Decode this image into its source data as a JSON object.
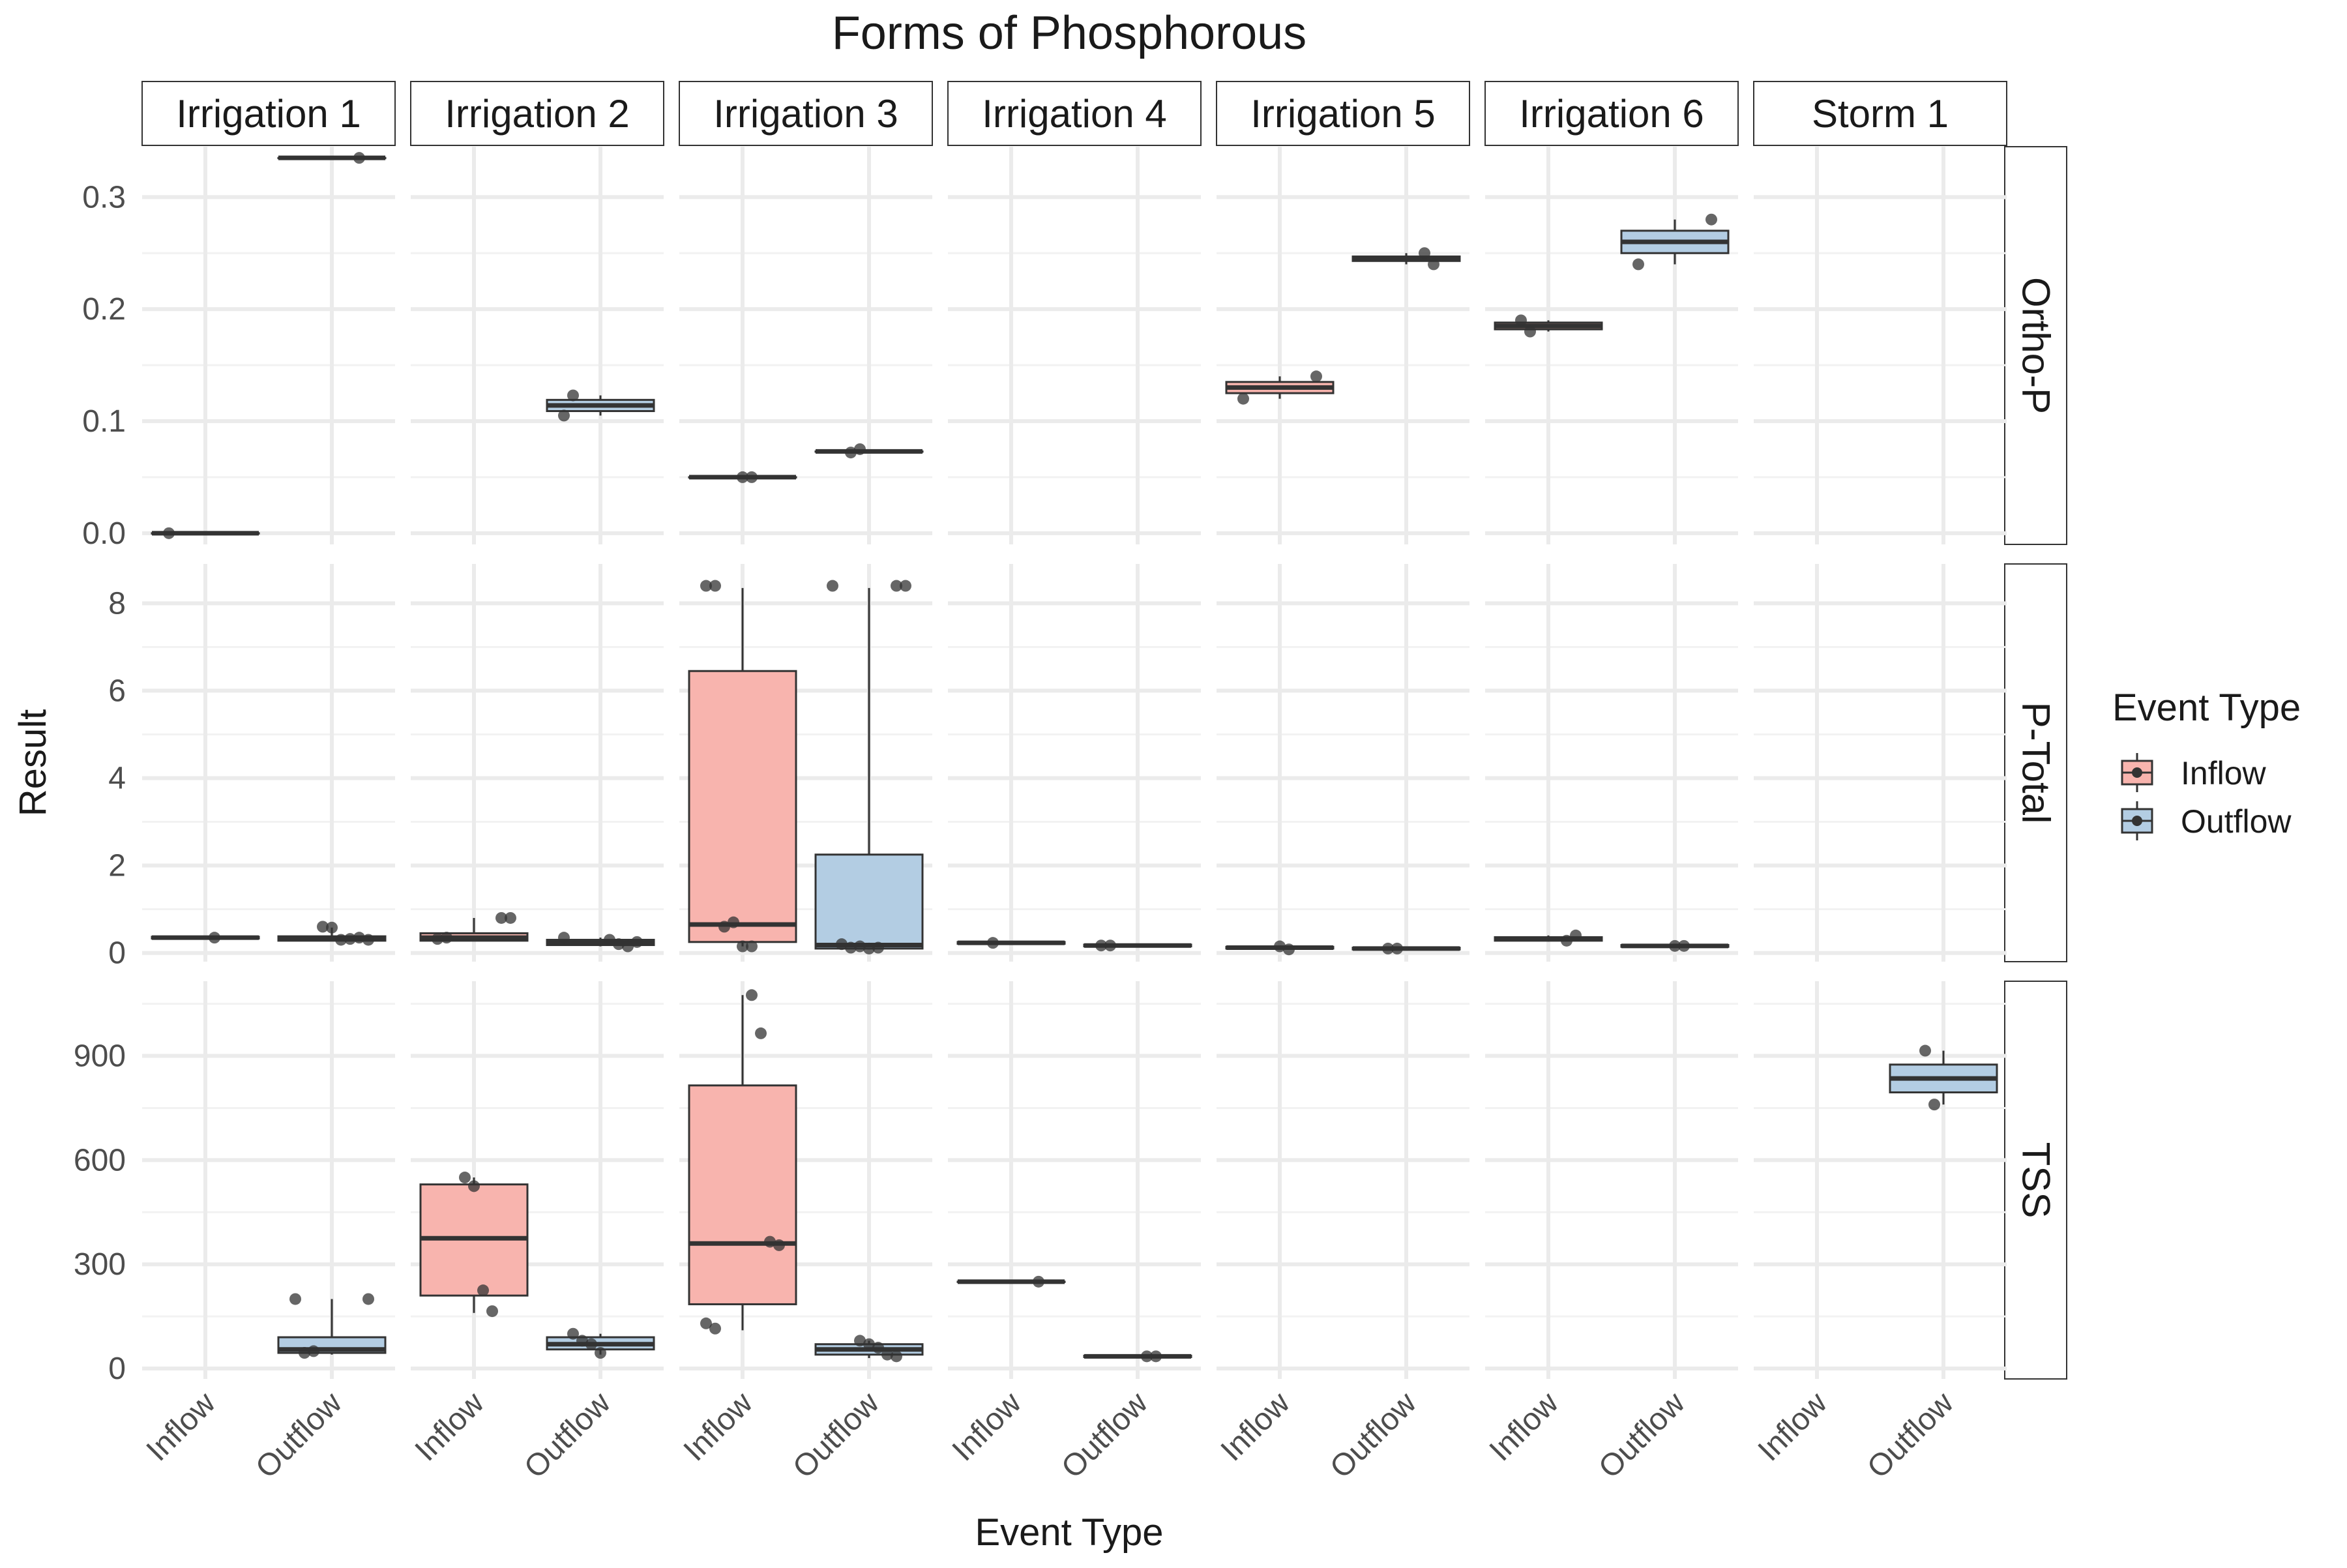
{
  "chart_data": {
    "type": "box",
    "title": "Forms of Phosphorous",
    "xlabel": "Event Type",
    "ylabel": "Result",
    "legend": {
      "title": "Event Type",
      "placement": "right",
      "items": [
        {
          "label": "Inflow",
          "color": "#F8B4AE"
        },
        {
          "label": "Outflow",
          "color": "#B3CDE3"
        }
      ]
    },
    "grid": true,
    "columns": [
      "Irrigation 1",
      "Irrigation 2",
      "Irrigation 3",
      "Irrigation 4",
      "Irrigation 5",
      "Irrigation 6",
      "Storm 1"
    ],
    "categories": [
      "Inflow",
      "Outflow"
    ],
    "rows": [
      {
        "name": "Ortho-P",
        "ylim": [
          -0.01,
          0.345
        ],
        "yticks": [
          0,
          0.1,
          0.2,
          0.3
        ],
        "yticklabels": [
          "0.0",
          "0.1",
          "0.2",
          "0.3"
        ],
        "cells": [
          {
            "Inflow": {
              "q1": 0,
              "median": 0,
              "q3": 0,
              "min": 0,
              "max": 0,
              "points": [
                0
              ]
            },
            "Outflow": {
              "q1": 0.335,
              "median": 0.335,
              "q3": 0.335,
              "min": 0.335,
              "max": 0.335,
              "points": [
                0.335
              ]
            }
          },
          {
            "Inflow": null,
            "Outflow": {
              "q1": 0.109,
              "median": 0.114,
              "q3": 0.119,
              "min": 0.105,
              "max": 0.123,
              "points": [
                0.105,
                0.123
              ]
            }
          },
          {
            "Inflow": {
              "q1": 0.05,
              "median": 0.05,
              "q3": 0.05,
              "min": 0.05,
              "max": 0.05,
              "points": [
                0.05,
                0.05
              ]
            },
            "Outflow": {
              "q1": 0.073,
              "median": 0.073,
              "q3": 0.073,
              "min": 0.072,
              "max": 0.074,
              "points": [
                0.072,
                0.075
              ]
            }
          },
          {
            "Inflow": null,
            "Outflow": null
          },
          {
            "Inflow": {
              "q1": 0.125,
              "median": 0.13,
              "q3": 0.135,
              "min": 0.12,
              "max": 0.14,
              "points": [
                0.14,
                0.12
              ]
            },
            "Outflow": {
              "q1": 0.243,
              "median": 0.245,
              "q3": 0.247,
              "min": 0.24,
              "max": 0.25,
              "points": [
                0.25,
                0.24
              ]
            }
          },
          {
            "Inflow": {
              "q1": 0.182,
              "median": 0.185,
              "q3": 0.188,
              "min": 0.18,
              "max": 0.19,
              "points": [
                0.19,
                0.18
              ]
            },
            "Outflow": {
              "q1": 0.25,
              "median": 0.26,
              "q3": 0.27,
              "min": 0.24,
              "max": 0.28,
              "points": [
                0.28,
                0.24
              ]
            }
          },
          {
            "Inflow": null,
            "Outflow": null
          }
        ]
      },
      {
        "name": "P-Total",
        "ylim": [
          -0.2,
          8.9
        ],
        "yticks": [
          0,
          2,
          4,
          6,
          8
        ],
        "yticklabels": [
          "0",
          "2",
          "4",
          "6",
          "8"
        ],
        "cells": [
          {
            "Inflow": {
              "q1": 0.33,
              "median": 0.35,
              "q3": 0.37,
              "min": 0.33,
              "max": 0.37,
              "points": [
                0.35
              ]
            },
            "Outflow": {
              "q1": 0.28,
              "median": 0.32,
              "q3": 0.38,
              "min": 0.27,
              "max": 0.58,
              "points": [
                0.6,
                0.58,
                0.3,
                0.32,
                0.35,
                0.3
              ]
            }
          },
          {
            "Inflow": {
              "q1": 0.28,
              "median": 0.35,
              "q3": 0.45,
              "min": 0.28,
              "max": 0.8,
              "points": [
                0.8,
                0.8,
                0.32,
                0.35
              ]
            },
            "Outflow": {
              "q1": 0.18,
              "median": 0.23,
              "q3": 0.3,
              "min": 0.15,
              "max": 0.35,
              "points": [
                0.3,
                0.2,
                0.15,
                0.25,
                0.35
              ]
            }
          },
          {
            "Inflow": {
              "q1": 0.25,
              "median": 0.65,
              "q3": 6.45,
              "min": 0.15,
              "max": 8.35,
              "points": [
                8.4,
                8.4,
                0.6,
                0.7,
                0.15,
                0.15
              ]
            },
            "Outflow": {
              "q1": 0.1,
              "median": 0.18,
              "q3": 2.25,
              "min": 0.08,
              "max": 8.35,
              "points": [
                8.4,
                8.4,
                8.4,
                0.2,
                0.12,
                0.15,
                0.1,
                0.12
              ]
            }
          },
          {
            "Inflow": {
              "q1": 0.21,
              "median": 0.23,
              "q3": 0.25,
              "min": 0.21,
              "max": 0.25,
              "points": [
                0.23
              ]
            },
            "Outflow": {
              "q1": 0.15,
              "median": 0.17,
              "q3": 0.19,
              "min": 0.15,
              "max": 0.19,
              "points": [
                0.17,
                0.17
              ]
            }
          },
          {
            "Inflow": {
              "q1": 0.1,
              "median": 0.12,
              "q3": 0.14,
              "min": 0.08,
              "max": 0.15,
              "points": [
                0.15,
                0.08
              ]
            },
            "Outflow": {
              "q1": 0.08,
              "median": 0.1,
              "q3": 0.12,
              "min": 0.08,
              "max": 0.12,
              "points": [
                0.1,
                0.1
              ]
            }
          },
          {
            "Inflow": {
              "q1": 0.28,
              "median": 0.32,
              "q3": 0.36,
              "min": 0.26,
              "max": 0.4,
              "points": [
                0.28,
                0.4
              ]
            },
            "Outflow": {
              "q1": 0.14,
              "median": 0.16,
              "q3": 0.18,
              "min": 0.14,
              "max": 0.18,
              "points": [
                0.16,
                0.16
              ]
            }
          },
          {
            "Inflow": null,
            "Outflow": null
          }
        ]
      },
      {
        "name": "TSS",
        "ylim": [
          -30,
          1115
        ],
        "yticks": [
          0,
          300,
          600,
          900
        ],
        "yticklabels": [
          "0",
          "300",
          "600",
          "900"
        ],
        "cells": [
          {
            "Inflow": null,
            "Outflow": {
              "q1": 45,
              "median": 55,
              "q3": 90,
              "min": 40,
              "max": 200,
              "points": [
                200,
                200,
                45,
                50
              ]
            }
          },
          {
            "Inflow": {
              "q1": 210,
              "median": 375,
              "q3": 530,
              "min": 160,
              "max": 550,
              "points": [
                550,
                525,
                225,
                165
              ]
            },
            "Outflow": {
              "q1": 55,
              "median": 70,
              "q3": 90,
              "min": 40,
              "max": 100,
              "points": [
                100,
                80,
                70,
                45
              ]
            }
          },
          {
            "Inflow": {
              "q1": 185,
              "median": 360,
              "q3": 815,
              "min": 110,
              "max": 1075,
              "points": [
                1075,
                965,
                365,
                355,
                130,
                115
              ]
            },
            "Outflow": {
              "q1": 40,
              "median": 55,
              "q3": 70,
              "min": 30,
              "max": 80,
              "points": [
                80,
                70,
                60,
                40,
                35
              ]
            }
          },
          {
            "Inflow": {
              "q1": 250,
              "median": 250,
              "q3": 250,
              "min": 250,
              "max": 250,
              "points": [
                250
              ]
            },
            "Outflow": {
              "q1": 33,
              "median": 35,
              "q3": 37,
              "min": 33,
              "max": 37,
              "points": [
                35,
                35
              ]
            }
          },
          {
            "Inflow": null,
            "Outflow": null
          },
          {
            "Inflow": null,
            "Outflow": null
          },
          {
            "Inflow": null,
            "Outflow": {
              "q1": 795,
              "median": 835,
              "q3": 875,
              "min": 760,
              "max": 915,
              "points": [
                915,
                760
              ]
            }
          }
        ]
      }
    ]
  },
  "colors": {
    "inflow_fill": "#F8B4AE",
    "outflow_fill": "#B3CDE3",
    "box_line": "#333333",
    "point": "#333333",
    "grid_major": "#EBEBEB",
    "grid_minor": "#F2F2F2"
  }
}
